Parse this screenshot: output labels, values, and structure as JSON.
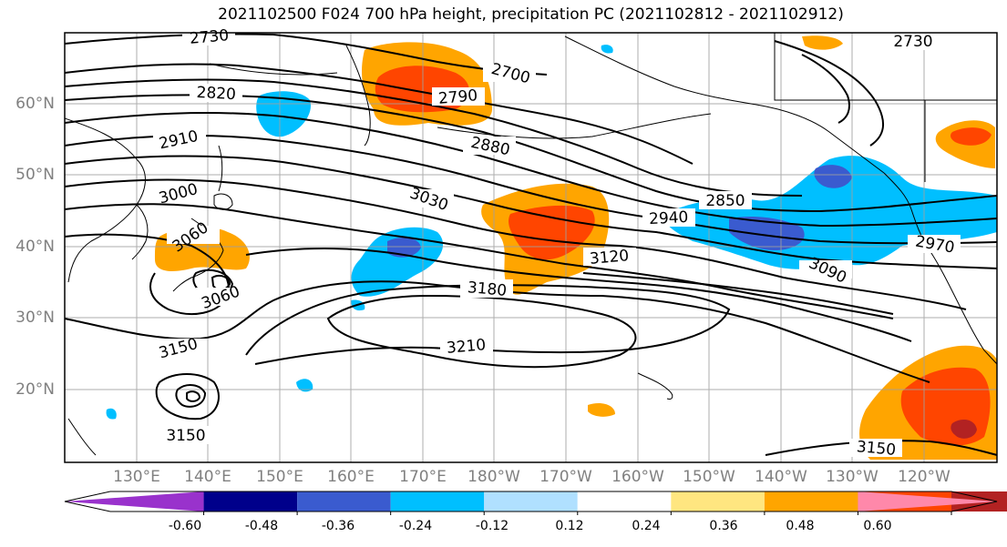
{
  "title": "2021102500 F024 700 hPa height, precipitation PC (2021102812 - 2021102912)",
  "lat_labels": [
    "60°N",
    "50°N",
    "40°N",
    "30°N",
    "20°N"
  ],
  "lon_labels": [
    "130°E",
    "140°E",
    "150°E",
    "160°E",
    "170°E",
    "180°W",
    "170°W",
    "160°W",
    "150°W",
    "140°W",
    "130°W",
    "120°W"
  ],
  "contour_labels": [
    "2730",
    "2820",
    "2910",
    "3000",
    "3060",
    "3060",
    "3150",
    "3150",
    "2700",
    "2790",
    "2880",
    "3030",
    "3120",
    "3180",
    "3210",
    "2940",
    "2850",
    "3090",
    "2970",
    "2730",
    "3150"
  ],
  "colorbar": {
    "colors": [
      "#9932cc",
      "#00008b",
      "#3a5bcf",
      "#00bfff",
      "#b0e0ff",
      "#ffffff",
      "#ffe680",
      "#ffa500",
      "#ff4500",
      "#b22222",
      "#ff88aa"
    ],
    "tick_labels": [
      "-0.60",
      "-0.48",
      "-0.36",
      "-0.24",
      "-0.12",
      "0.12",
      "0.24",
      "0.36",
      "0.48",
      "0.60"
    ]
  },
  "colors": {
    "contour": "#000000",
    "grid": "#a0a0a0",
    "coast": "#000000",
    "axis_label": "#808080"
  }
}
